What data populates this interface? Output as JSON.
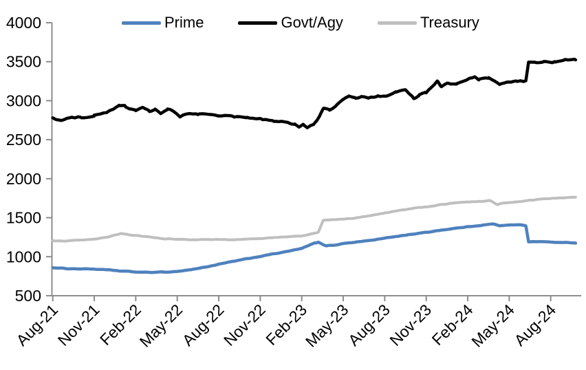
{
  "chart_data": {
    "type": "line",
    "title": "",
    "legend_position": "top",
    "grid": false,
    "axis_color": "#8C8C8C",
    "label_color": "#000000",
    "y_axis": {
      "min": 500,
      "max": 4000,
      "step": 500,
      "tick_labels": [
        "500",
        "1000",
        "1500",
        "2000",
        "2500",
        "3000",
        "3500",
        "4000"
      ]
    },
    "x_axis": {
      "start": "Aug-21",
      "months_per_tick": 3,
      "tick_labels": [
        "Aug-21",
        "Nov-21",
        "Feb-22",
        "May-22",
        "Aug-22",
        "Nov-22",
        "Feb-23",
        "May-23",
        "Aug-23",
        "Nov-23",
        "Feb-24",
        "May-24",
        "Aug-24"
      ],
      "data_end_month_index": 37.8
    },
    "series": [
      {
        "name": "Prime",
        "color": "#4F81BD",
        "stroke_width": 4.5,
        "noise": 3,
        "points": [
          [
            0,
            858
          ],
          [
            1,
            848
          ],
          [
            2,
            845
          ],
          [
            3,
            842
          ],
          [
            4,
            830
          ],
          [
            5,
            815
          ],
          [
            6,
            804
          ],
          [
            7,
            799
          ],
          [
            8,
            802
          ],
          [
            9,
            812
          ],
          [
            10,
            835
          ],
          [
            11,
            866
          ],
          [
            12,
            903
          ],
          [
            13,
            938
          ],
          [
            14,
            972
          ],
          [
            15,
            1004
          ],
          [
            16,
            1038
          ],
          [
            17,
            1068
          ],
          [
            18,
            1106
          ],
          [
            18.9,
            1172
          ],
          [
            19.2,
            1185
          ],
          [
            19.7,
            1140
          ],
          [
            20.3,
            1148
          ],
          [
            21,
            1170
          ],
          [
            22,
            1190
          ],
          [
            23,
            1210
          ],
          [
            24,
            1238
          ],
          [
            25,
            1264
          ],
          [
            26,
            1290
          ],
          [
            27,
            1312
          ],
          [
            28,
            1340
          ],
          [
            29,
            1362
          ],
          [
            30,
            1384
          ],
          [
            31,
            1405
          ],
          [
            31.8,
            1420
          ],
          [
            32.3,
            1398
          ],
          [
            33,
            1404
          ],
          [
            33.8,
            1412
          ],
          [
            34.2,
            1400
          ],
          [
            34.4,
            1192
          ],
          [
            35,
            1194
          ],
          [
            36,
            1188
          ],
          [
            37,
            1180
          ],
          [
            37.8,
            1178
          ]
        ]
      },
      {
        "name": "Govt/Agy",
        "color": "#000000",
        "stroke_width": 4.5,
        "noise": 9,
        "points": [
          [
            0,
            2780
          ],
          [
            0.6,
            2748
          ],
          [
            1,
            2768
          ],
          [
            2,
            2788
          ],
          [
            3,
            2812
          ],
          [
            4,
            2858
          ],
          [
            4.8,
            2930
          ],
          [
            5.2,
            2938
          ],
          [
            5.5,
            2898
          ],
          [
            6,
            2878
          ],
          [
            6.5,
            2908
          ],
          [
            7,
            2858
          ],
          [
            7.4,
            2888
          ],
          [
            7.8,
            2838
          ],
          [
            8.3,
            2888
          ],
          [
            8.8,
            2855
          ],
          [
            9.2,
            2788
          ],
          [
            9.8,
            2838
          ],
          [
            10.5,
            2822
          ],
          [
            11,
            2832
          ],
          [
            12,
            2812
          ],
          [
            13,
            2798
          ],
          [
            14,
            2780
          ],
          [
            15,
            2762
          ],
          [
            16,
            2742
          ],
          [
            17,
            2718
          ],
          [
            17.5,
            2700
          ],
          [
            17.8,
            2672
          ],
          [
            18.1,
            2695
          ],
          [
            18.4,
            2656
          ],
          [
            18.9,
            2700
          ],
          [
            19.3,
            2800
          ],
          [
            19.6,
            2905
          ],
          [
            20,
            2880
          ],
          [
            20.5,
            2938
          ],
          [
            21,
            3010
          ],
          [
            21.4,
            3058
          ],
          [
            21.9,
            3028
          ],
          [
            22.3,
            3052
          ],
          [
            22.8,
            3030
          ],
          [
            23.5,
            3052
          ],
          [
            24,
            3062
          ],
          [
            24.8,
            3108
          ],
          [
            25.5,
            3132
          ],
          [
            26.1,
            3028
          ],
          [
            26.5,
            3075
          ],
          [
            27,
            3100
          ],
          [
            27.8,
            3248
          ],
          [
            28.1,
            3178
          ],
          [
            28.6,
            3225
          ],
          [
            29.2,
            3218
          ],
          [
            29.8,
            3242
          ],
          [
            30.5,
            3308
          ],
          [
            30.8,
            3272
          ],
          [
            31.5,
            3288
          ],
          [
            32.3,
            3205
          ],
          [
            32.8,
            3228
          ],
          [
            33.5,
            3242
          ],
          [
            34.2,
            3252
          ],
          [
            34.4,
            3492
          ],
          [
            34.8,
            3482
          ],
          [
            35.5,
            3492
          ],
          [
            36.3,
            3498
          ],
          [
            37,
            3515
          ],
          [
            37.8,
            3528
          ]
        ]
      },
      {
        "name": "Treasury",
        "color": "#BFBFBF",
        "stroke_width": 4,
        "noise": 3.5,
        "points": [
          [
            0,
            1205
          ],
          [
            1,
            1200
          ],
          [
            2,
            1210
          ],
          [
            3,
            1222
          ],
          [
            4,
            1250
          ],
          [
            4.9,
            1298
          ],
          [
            5.3,
            1288
          ],
          [
            6,
            1270
          ],
          [
            7,
            1250
          ],
          [
            8,
            1232
          ],
          [
            9,
            1225
          ],
          [
            10,
            1216
          ],
          [
            11,
            1220
          ],
          [
            12,
            1220
          ],
          [
            13,
            1215
          ],
          [
            14,
            1225
          ],
          [
            15,
            1231
          ],
          [
            16,
            1245
          ],
          [
            17,
            1254
          ],
          [
            18,
            1268
          ],
          [
            19,
            1305
          ],
          [
            19.2,
            1310
          ],
          [
            19.55,
            1465
          ],
          [
            20,
            1472
          ],
          [
            21,
            1480
          ],
          [
            22,
            1500
          ],
          [
            23,
            1528
          ],
          [
            24,
            1562
          ],
          [
            25,
            1590
          ],
          [
            26,
            1616
          ],
          [
            27,
            1640
          ],
          [
            28,
            1666
          ],
          [
            29,
            1688
          ],
          [
            30,
            1698
          ],
          [
            31,
            1710
          ],
          [
            31.6,
            1724
          ],
          [
            32.1,
            1672
          ],
          [
            32.6,
            1690
          ],
          [
            33.3,
            1702
          ],
          [
            34,
            1716
          ],
          [
            35,
            1730
          ],
          [
            36,
            1745
          ],
          [
            37,
            1756
          ],
          [
            37.8,
            1762
          ]
        ]
      }
    ]
  }
}
